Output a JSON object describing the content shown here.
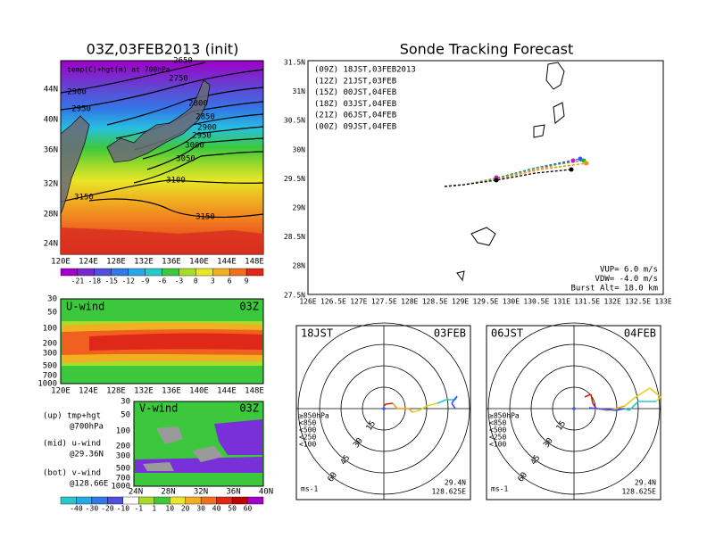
{
  "left": {
    "title": "03Z,03FEB2013 (init)",
    "temp_map": {
      "label": "temp(C)+hgt(m) at 700hPa",
      "lat_labels": [
        "44N",
        "40N",
        "36N",
        "32N",
        "28N",
        "24N"
      ],
      "lon_labels": [
        "120E",
        "124E",
        "128E",
        "132E",
        "136E",
        "140E",
        "144E",
        "148E"
      ],
      "contour_labels": [
        "2650",
        "2750",
        "2900",
        "2950",
        "2800",
        "2850",
        "2900",
        "2950",
        "3000",
        "3050",
        "3100",
        "3150",
        "3150"
      ],
      "colorbar": [
        "-21",
        "-18",
        "-15",
        "-12",
        "-9",
        "-6",
        "-3",
        "0",
        "3",
        "6",
        "9"
      ]
    },
    "u_wind": {
      "label": "U-wind",
      "time": "03Z",
      "levels": [
        "30",
        "50",
        "100",
        "200",
        "300",
        "500",
        "700",
        "1000"
      ],
      "lon_labels": [
        "120E",
        "124E",
        "128E",
        "132E",
        "136E",
        "140E",
        "144E",
        "148E"
      ]
    },
    "v_wind": {
      "label": "V-wind",
      "time": "03Z",
      "levels": [
        "30",
        "50",
        "100",
        "200",
        "300",
        "500",
        "700",
        "1000"
      ],
      "lat_labels": [
        "24N",
        "28N",
        "32N",
        "36N",
        "40N"
      ],
      "colorbar": [
        "-40",
        "-30",
        "-20",
        "-10",
        "-1",
        "1",
        "10",
        "20",
        "30",
        "40",
        "50",
        "60"
      ]
    },
    "notes": [
      "(up) tmp+hgt",
      "@700hPa",
      "(mid) u-wind",
      "@29.36N",
      "(bot) v-wind",
      "@128.66E"
    ]
  },
  "right": {
    "title": "Sonde Tracking Forecast",
    "lat_labels": [
      "31.5N",
      "31N",
      "30.5N",
      "30N",
      "29.5N",
      "29N",
      "28.5N",
      "28N",
      "27.5N"
    ],
    "lon_labels": [
      "126E",
      "126.5E",
      "127E",
      "127.5E",
      "128E",
      "128.5E",
      "129E",
      "129.5E",
      "130E",
      "130.5E",
      "131E",
      "131.5E",
      "132E",
      "132.5E",
      "133E"
    ],
    "legend": [
      {
        "text": "(09Z)  18JST,03FEB2013",
        "color": "#000000"
      },
      {
        "text": "(12Z)  21JST,03FEB",
        "color": "#c020c0"
      },
      {
        "text": "(15Z)  00JST,04FEB",
        "color": "#3c50ff"
      },
      {
        "text": "(18Z)  03JST,04FEB",
        "color": "#20b030"
      },
      {
        "text": "(21Z)  06JST,04FEB",
        "color": "#e0c828"
      },
      {
        "text": "(00Z)  09JST,04FEB",
        "color": "#f09028"
      }
    ],
    "params": [
      "VUP= 6.0 m/s",
      "VDW= -4.0 m/s",
      "Burst Alt= 18.0 km"
    ],
    "hodographs": [
      {
        "time": "18JST",
        "date": "03FEB",
        "rings": [
          "15",
          "30",
          "45",
          "60"
        ],
        "levels": [
          "≥850hPa",
          "<850",
          "<500",
          "<250",
          "<100"
        ],
        "unit": "ms-1",
        "lat": "29.4N",
        "lon": "128.625E"
      },
      {
        "time": "06JST",
        "date": "04FEB",
        "rings": [
          "15",
          "30",
          "45",
          "60"
        ],
        "levels": [
          "≥850hPa",
          "<850",
          "<500",
          "<250",
          "<100"
        ],
        "unit": "ms-1",
        "lat": "29.4N",
        "lon": "128.625E"
      }
    ]
  }
}
